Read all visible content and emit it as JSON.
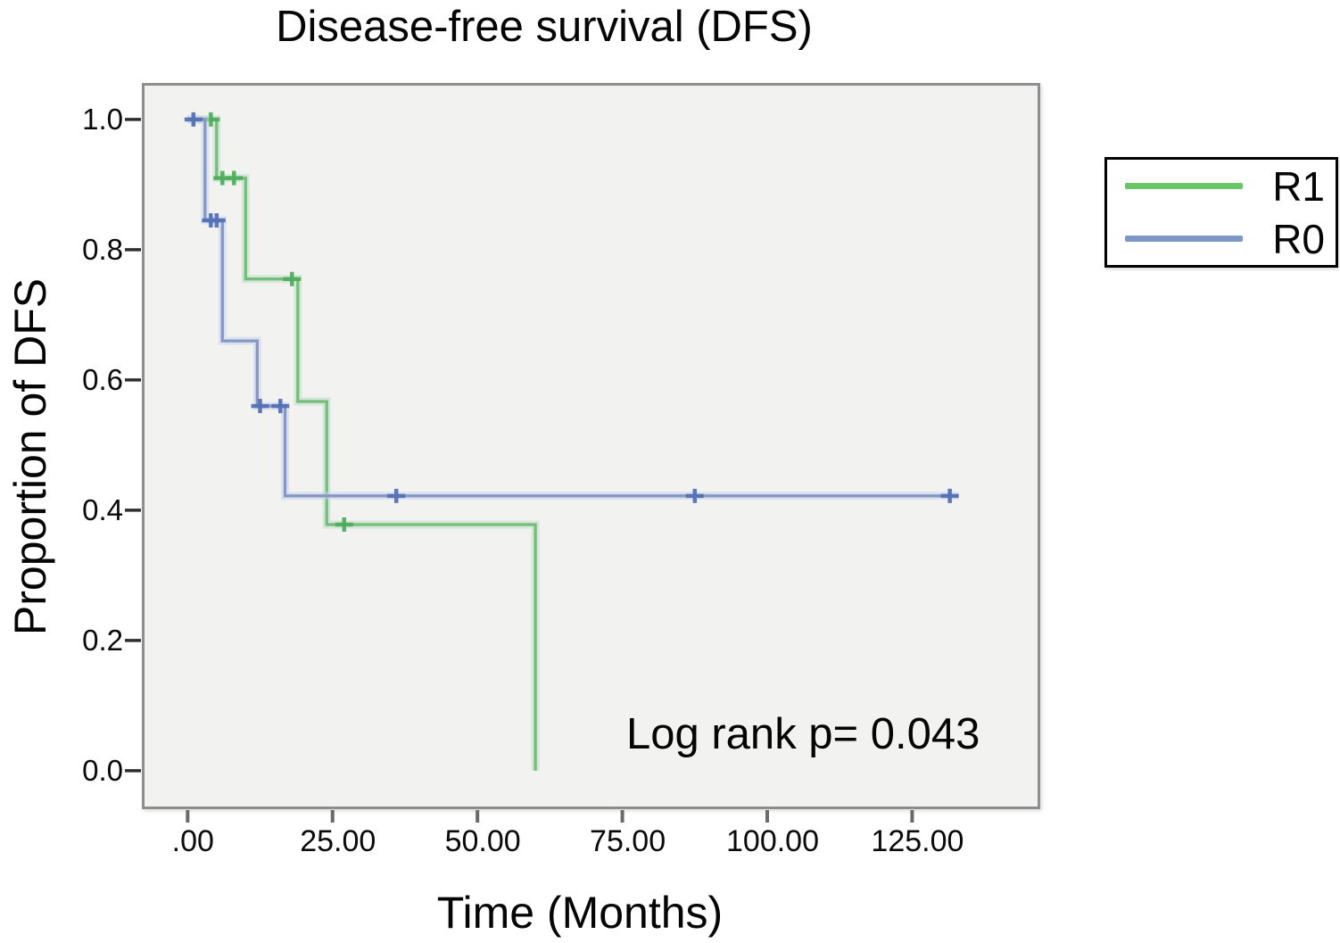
{
  "figure": {
    "title": "Disease-free survival (DFS)",
    "annotation": "Log rank p= 0.043"
  },
  "chart_data": {
    "type": "line",
    "subtype": "kaplan-meier-step-survival",
    "title": "Disease-free survival (DFS)",
    "xlabel": "Time (Months)",
    "ylabel": "Proportion of DFS",
    "annotation": "Log rank p= 0.043",
    "grid": false,
    "xlim": [
      -7.9,
      147.1
    ],
    "ylim": [
      -0.059,
      1.056
    ],
    "x_ticks": {
      "values": [
        0,
        25,
        50,
        75,
        100,
        125
      ],
      "labels": [
        ".00",
        "25.00",
        "50.00",
        "75.00",
        "100.00",
        "125.00"
      ]
    },
    "y_ticks": {
      "values": [
        0.0,
        0.2,
        0.4,
        0.6,
        0.8,
        1.0
      ],
      "labels": [
        "0.0",
        "0.2",
        "0.4",
        "0.6",
        "0.8",
        "1.0"
      ]
    },
    "legend": {
      "position": "outside-top-right",
      "items": [
        "R1",
        "R0"
      ]
    },
    "series": [
      {
        "name": "R1",
        "color": "#74bd7b",
        "halo_color": "#bcdfc3",
        "censor_color": "#4fae5c",
        "legend_color": "#6cc468",
        "steps": [
          [
            0,
            1.0
          ],
          [
            5,
            1.0
          ],
          [
            5,
            0.91
          ],
          [
            10,
            0.91
          ],
          [
            10,
            0.755
          ],
          [
            19,
            0.755
          ],
          [
            19,
            0.567
          ],
          [
            24,
            0.567
          ],
          [
            24,
            0.378
          ],
          [
            60,
            0.378
          ],
          [
            60,
            0.0
          ]
        ],
        "censor_points": [
          [
            4,
            1.0
          ],
          [
            6,
            0.91
          ],
          [
            8,
            0.91
          ],
          [
            18,
            0.755
          ],
          [
            27,
            0.378
          ]
        ]
      },
      {
        "name": "R0",
        "color": "#8598c5",
        "halo_color": "#c9d4ea",
        "censor_color": "#5570b4",
        "legend_color": "#7e97c9",
        "steps": [
          [
            0,
            1.0
          ],
          [
            3,
            1.0
          ],
          [
            3,
            0.845
          ],
          [
            6,
            0.845
          ],
          [
            6,
            0.66
          ],
          [
            12,
            0.66
          ],
          [
            12,
            0.56
          ],
          [
            16.8,
            0.56
          ],
          [
            16.8,
            0.422
          ],
          [
            133,
            0.422
          ]
        ],
        "censor_points": [
          [
            1,
            1.0
          ],
          [
            4,
            0.845
          ],
          [
            5,
            0.845
          ],
          [
            12.5,
            0.56
          ],
          [
            16,
            0.56
          ],
          [
            36,
            0.422
          ],
          [
            87.5,
            0.422
          ],
          [
            131.5,
            0.422
          ]
        ]
      }
    ],
    "axis_colors": {
      "y_tick": "#2e2e2e",
      "x_tick": "#6a6a6a"
    }
  }
}
